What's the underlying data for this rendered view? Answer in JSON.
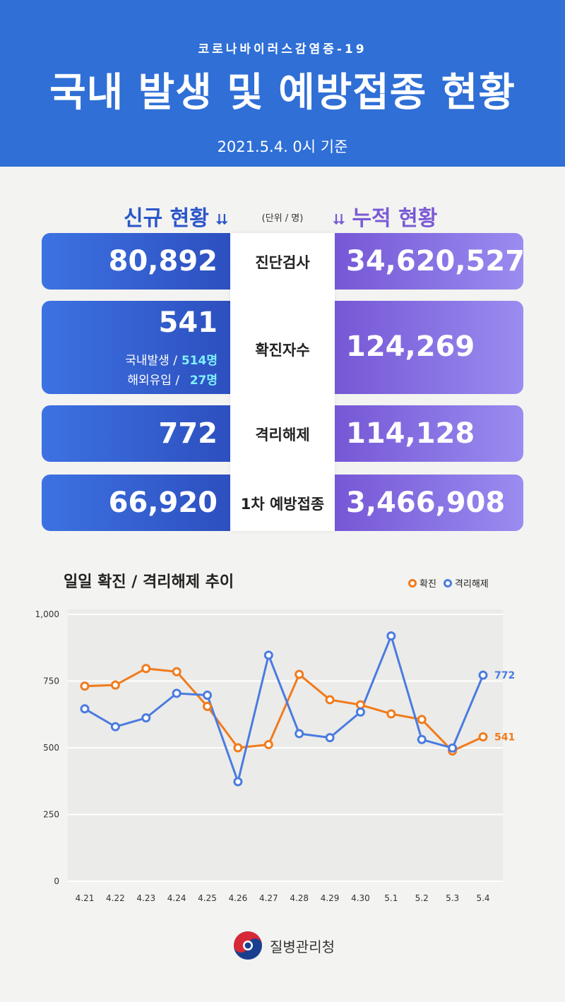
{
  "header": {
    "subtitle": "코로나바이러스감염증-19",
    "title": "국내 발생 및 예방접종 현황",
    "date": "2021.5.4. 0시 기준"
  },
  "columns": {
    "left_header": "신규 현황",
    "right_header": "누적 현황",
    "unit": "(단위 / 명)"
  },
  "rows": [
    {
      "label": "진단검사",
      "new": "80,892",
      "cumulative": "34,620,527"
    },
    {
      "label": "확진자수",
      "new": "541",
      "cumulative": "124,269",
      "sub": [
        {
          "label": "국내발생 /",
          "value": "514명"
        },
        {
          "label": "해외유입 /",
          "value": "27명"
        }
      ]
    },
    {
      "label": "격리해제",
      "new": "772",
      "cumulative": "114,128"
    },
    {
      "label": "1차 예방접종",
      "new": "66,920",
      "cumulative": "3,466,908"
    }
  ],
  "chart_title": "일일 확진 / 격리해제 추이",
  "colors": {
    "confirmed": "#f07b1c",
    "released": "#4a7be0",
    "header_bg": "#2f6fd6"
  },
  "chart_data": {
    "type": "line",
    "categories": [
      "4.21",
      "4.22",
      "4.23",
      "4.24",
      "4.25",
      "4.26",
      "4.27",
      "4.28",
      "4.29",
      "4.30",
      "5.1",
      "5.2",
      "5.3",
      "5.4"
    ],
    "series": [
      {
        "name": "확진",
        "values": [
          731,
          735,
          797,
          785,
          655,
          500,
          512,
          775,
          680,
          661,
          627,
          606,
          488,
          541
        ]
      },
      {
        "name": "격리해제",
        "values": [
          646,
          579,
          612,
          704,
          697,
          373,
          847,
          553,
          538,
          634,
          919,
          531,
          499,
          772
        ]
      }
    ],
    "end_labels": [
      "541",
      "772"
    ],
    "ylim": [
      0,
      1000
    ],
    "yticks": [
      "0",
      "250",
      "500",
      "750",
      "1,000"
    ],
    "grid": true,
    "legend_position": "top-right"
  },
  "footer": {
    "org": "질병관리청",
    "emblem": "taegeuk-emblem-icon"
  }
}
